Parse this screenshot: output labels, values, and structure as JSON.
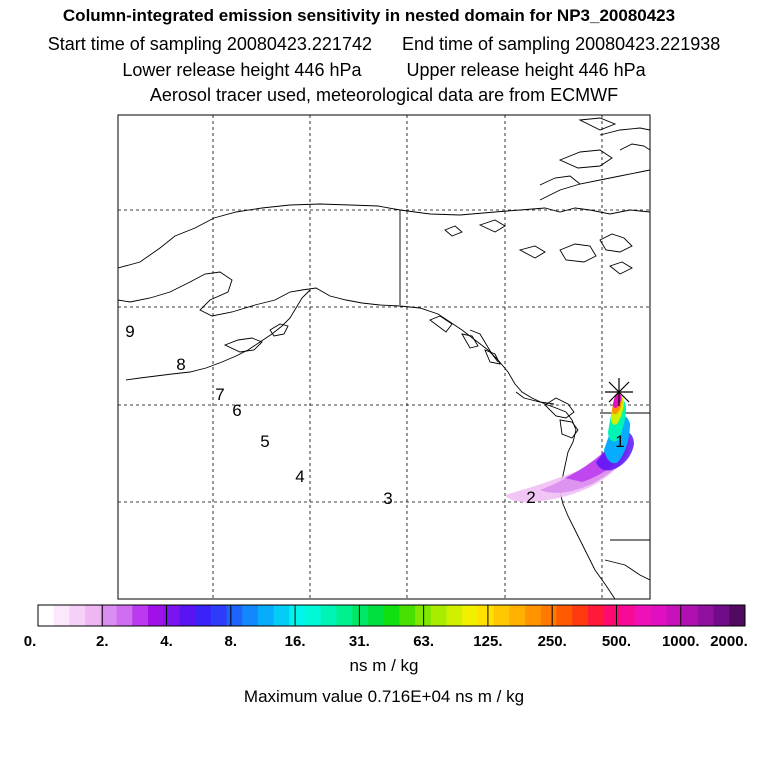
{
  "header": {
    "title": "Column-integrated emission sensitivity in nested domain for NP3_20080423",
    "start_label": "Start time of sampling 20080423.221742",
    "end_label": "End time of sampling 20080423.221938",
    "lower_label": "Lower release height  446 hPa",
    "upper_label": "Upper release height  446 hPa",
    "tracer_label": "Aerosol tracer used, meteorological data are from ECMWF"
  },
  "map": {
    "day_markers": [
      "1",
      "2",
      "3",
      "4",
      "5",
      "6",
      "7",
      "8",
      "9"
    ],
    "release_site_icon": "asterisk-icon"
  },
  "colorbar": {
    "tick_labels": [
      "0.",
      "2.",
      "4.",
      "8.",
      "16.",
      "31.",
      "63.",
      "125.",
      "250.",
      "500.",
      "1000.",
      "2000."
    ],
    "colors": [
      "#ffffff",
      "#fbe8fb",
      "#f5d0f7",
      "#eeb6f3",
      "#d98ef0",
      "#cf6ef0",
      "#bb3af0",
      "#a010e8",
      "#7c14f0",
      "#5a14f4",
      "#3a22f8",
      "#2c3cfa",
      "#1e64fc",
      "#1288fc",
      "#08acfc",
      "#04ccf4",
      "#00f4ec",
      "#00f8d6",
      "#00f4b6",
      "#00f090",
      "#00e868",
      "#00e040",
      "#10e010",
      "#48e000",
      "#80e800",
      "#a8ec00",
      "#d0f000",
      "#f0f000",
      "#ffe000",
      "#ffc800",
      "#ffb000",
      "#ff9400",
      "#ff7a00",
      "#ff5a00",
      "#ff3a10",
      "#ff1a3a",
      "#ff0a70",
      "#f80a98",
      "#ee10b8",
      "#e010c0",
      "#c810b8",
      "#b010b0",
      "#9010a0",
      "#700c88",
      "#500a60"
    ],
    "units": "ns m / kg",
    "max_value": "Maximum value  0.716E+04 ns m / kg"
  }
}
